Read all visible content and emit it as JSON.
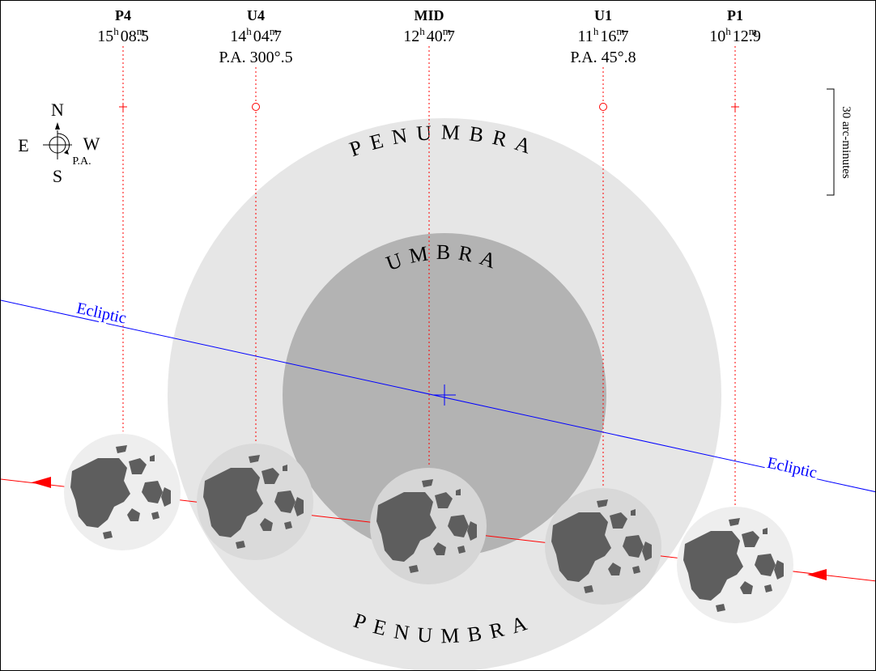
{
  "contacts": [
    {
      "id": "P4",
      "label": "P4",
      "h": "15",
      "m": "08",
      "frac": ".5",
      "pa": ""
    },
    {
      "id": "U4",
      "label": "U4",
      "h": "14",
      "m": "04",
      "frac": ".7",
      "pa": "P.A. 300°.5"
    },
    {
      "id": "MID",
      "label": "MID",
      "h": "12",
      "m": "40",
      "frac": ".7",
      "pa": ""
    },
    {
      "id": "U1",
      "label": "U1",
      "h": "11",
      "m": "16",
      "frac": ".7",
      "pa": "P.A. 45°.8"
    },
    {
      "id": "P1",
      "label": "P1",
      "h": "10",
      "m": "12",
      "frac": ".9",
      "pa": ""
    }
  ],
  "compass": {
    "north": "N",
    "south": "S",
    "east": "E",
    "west": "W",
    "pa": "P.A."
  },
  "scale_label": "30 arc-minutes",
  "labels": {
    "penumbra_top": "PENUMBRA",
    "umbra": "UMBRA",
    "penumbra_bottom": "PENUMBRA",
    "ecliptic_left": "Ecliptic",
    "ecliptic_right": "Ecliptic"
  },
  "colors": {
    "penumbra": "#e6e6e6",
    "umbra": "#b3b3b3",
    "moon_disk": "#eeeeee",
    "maria": "#5e5e5e",
    "ecliptic": "#0000ff",
    "moon_path": "#ff0000",
    "contact_lines": "#ff0000"
  }
}
